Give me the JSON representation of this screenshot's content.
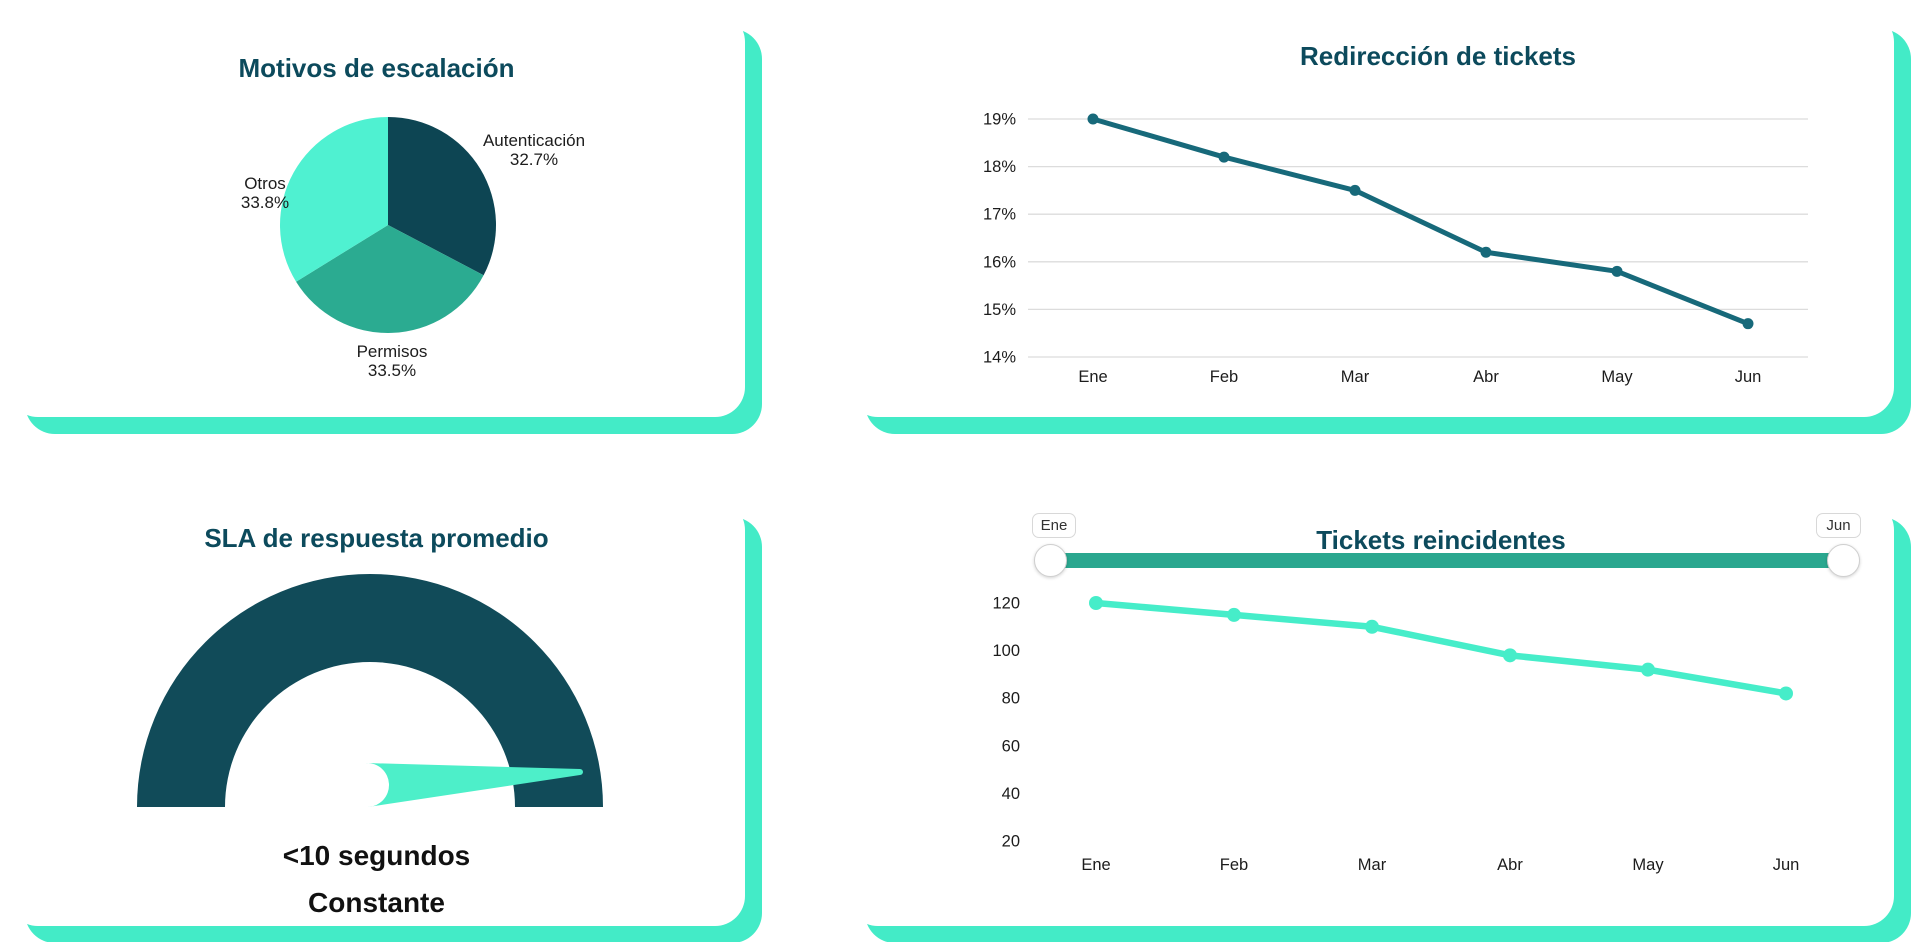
{
  "page": {
    "background": "#FFFFFF"
  },
  "colors": {
    "card_shadow_mint": "#43EBC7",
    "title_teal": "#0C4A5C",
    "grid_gray": "#DCDCDC",
    "tick_text": "#1C1C1C"
  },
  "chart_data": [
    {
      "id": "pie-escalation",
      "type": "pie",
      "title": "Motivos de escalación",
      "categories": [
        "Autenticación",
        "Permisos",
        "Otros"
      ],
      "values": [
        32.7,
        33.5,
        33.8
      ],
      "value_labels": [
        "32.7%",
        "33.5%",
        "33.8%"
      ],
      "colors": [
        "#0D4553",
        "#2BAB91",
        "#4FF1D1"
      ],
      "legend_position": "outside-labels",
      "start_angle": "top",
      "direction": "clockwise"
    },
    {
      "id": "line-redirection",
      "type": "line",
      "title": "Redirección de tickets",
      "x": [
        "Ene",
        "Feb",
        "Mar",
        "Abr",
        "May",
        "Jun"
      ],
      "values": [
        19,
        18.2,
        17.5,
        16.2,
        15.8,
        14.7
      ],
      "y_ticks": [
        "19%",
        "18%",
        "17%",
        "16%",
        "15%",
        "14%"
      ],
      "y_tick_values": [
        19,
        18,
        17,
        16,
        15,
        14
      ],
      "ylim": [
        14,
        19
      ],
      "grid": true,
      "legend_position": "none",
      "line_color": "#17697A"
    },
    {
      "id": "gauge-sla",
      "type": "gauge",
      "title": "SLA de respuesta promedio",
      "value_text": "<10 segundos",
      "status_text": "Constante",
      "arc_color": "#114B59",
      "needle_color": "#4DEFC9"
    },
    {
      "id": "line-recurrent",
      "type": "line",
      "title": "Tickets reincidentes",
      "x": [
        "Ene",
        "Feb",
        "Mar",
        "Abr",
        "May",
        "Jun"
      ],
      "values": [
        120,
        115,
        110,
        98,
        92,
        82
      ],
      "y_ticks": [
        "120",
        "100",
        "80",
        "60",
        "40",
        "20"
      ],
      "y_tick_values": [
        120,
        100,
        80,
        60,
        40,
        20
      ],
      "ylim": [
        20,
        120
      ],
      "grid": false,
      "legend_position": "none",
      "line_color": "#46EDC9",
      "slider": {
        "start_label": "Ene",
        "end_label": "Jun",
        "track_color": "#2AA78F"
      }
    }
  ]
}
